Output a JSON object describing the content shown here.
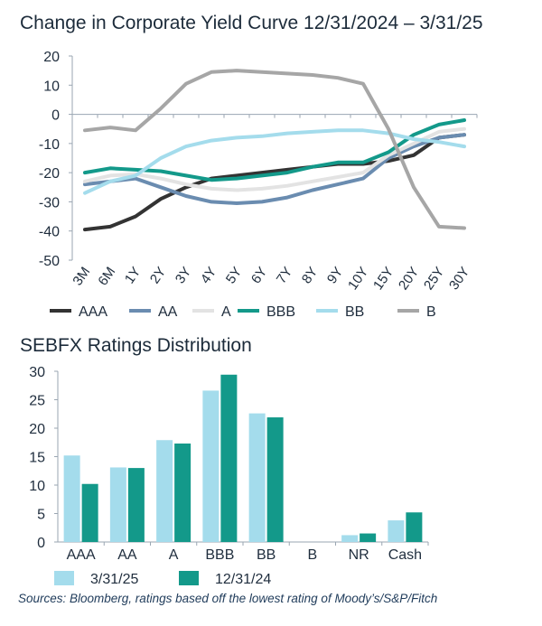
{
  "source_note": "Sources: Bloomberg, ratings based off the lowest rating of Moody’s/S&P/Fitch",
  "chart_data": [
    {
      "type": "line",
      "title": "Change in Corporate Yield Curve 12/31/2024 – 3/31/25",
      "xlabel": "",
      "ylabel": "",
      "ylim": [
        -50,
        20
      ],
      "yticks": [
        20,
        10,
        0,
        -10,
        -20,
        -30,
        -40,
        -50
      ],
      "categories": [
        "3M",
        "6M",
        "1Y",
        "2Y",
        "3Y",
        "4Y",
        "5Y",
        "6Y",
        "7Y",
        "8Y",
        "9Y",
        "10Y",
        "15Y",
        "20Y",
        "25Y",
        "30Y"
      ],
      "legend_position": "bottom",
      "series": [
        {
          "name": "AAA",
          "color": "#333333",
          "values": [
            -39.5,
            -38.5,
            -35,
            -29,
            -25,
            -22,
            -21,
            -20,
            -19,
            -18,
            -17,
            -17,
            -16,
            -14,
            -8,
            -7
          ]
        },
        {
          "name": "AA",
          "color": "#6a8cb0",
          "values": [
            -24,
            -23,
            -22,
            -25,
            -28,
            -30,
            -30.5,
            -30,
            -28.5,
            -26,
            -24,
            -22,
            -15,
            -11,
            -8,
            -7
          ]
        },
        {
          "name": "A",
          "color": "#e3e3e3",
          "values": [
            -23,
            -21,
            -20.5,
            -22,
            -24,
            -25.5,
            -26,
            -25.5,
            -24.5,
            -23,
            -21.5,
            -20,
            -14,
            -10,
            -6,
            -5
          ]
        },
        {
          "name": "BBB",
          "color": "#13998a",
          "values": [
            -20,
            -18.5,
            -19,
            -19.5,
            -21,
            -22.5,
            -22,
            -21,
            -20,
            -18,
            -16.5,
            -16.5,
            -13,
            -7,
            -3.5,
            -2
          ]
        },
        {
          "name": "BB",
          "color": "#a4dcec",
          "values": [
            -27,
            -23,
            -21,
            -15,
            -11,
            -9,
            -8,
            -7.5,
            -6.5,
            -6,
            -5.5,
            -5.5,
            -6.5,
            -8.5,
            -9.5,
            -11
          ]
        },
        {
          "name": "B",
          "color": "#a6a6a6",
          "values": [
            -5.5,
            -4.5,
            -5.5,
            2,
            10.5,
            14.5,
            15,
            14.5,
            14,
            13.5,
            12.5,
            10.5,
            -5,
            -25,
            -38.5,
            -39
          ]
        }
      ]
    },
    {
      "type": "bar",
      "title": "SEBFX Ratings Distribution",
      "xlabel": "",
      "ylabel": "",
      "ylim": [
        0,
        30
      ],
      "yticks": [
        30,
        25,
        20,
        15,
        10,
        5,
        0
      ],
      "categories": [
        "AAA",
        "AA",
        "A",
        "BBB",
        "BB",
        "B",
        "NR",
        "Cash"
      ],
      "legend_position": "bottom",
      "series": [
        {
          "name": "3/31/25",
          "color": "#a4dcec",
          "values": [
            15.2,
            13.1,
            17.9,
            26.6,
            22.6,
            0,
            1.2,
            3.8
          ]
        },
        {
          "name": "12/31/24",
          "color": "#13998a",
          "values": [
            10.2,
            13.0,
            17.3,
            29.4,
            21.9,
            0,
            1.5,
            5.2
          ]
        }
      ]
    }
  ]
}
